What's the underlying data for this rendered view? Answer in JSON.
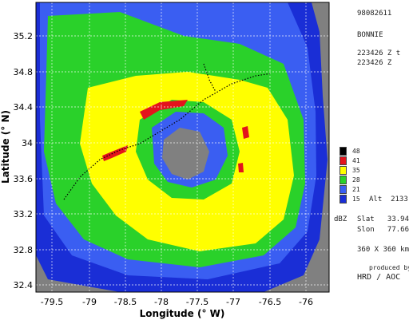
{
  "header": {
    "id": "98082611",
    "storm": "BONNIE",
    "time1": "223426 Z t",
    "time2": "223426 Z"
  },
  "legend": {
    "levels": [
      {
        "label": "48",
        "color": "#000000"
      },
      {
        "label": "41",
        "color": "#e3141c"
      },
      {
        "label": "35",
        "color": "#ffff00"
      },
      {
        "label": "28",
        "color": "#2ad12a"
      },
      {
        "label": "21",
        "color": "#3a5ef2"
      },
      {
        "label": "15",
        "color": "#1a2ed6"
      }
    ],
    "alt": "Alt  2133 m",
    "unit": "dBZ"
  },
  "center": {
    "slat": "Slat   33.94  N",
    "slon": "Slon   77.66  W"
  },
  "extent": "360 X 360 km",
  "credits": {
    "produced_by": "produced by",
    "org": "HRD / AOC"
  },
  "axes": {
    "xlabel": "Longitude (° W)",
    "ylabel": "Latitude (° N)",
    "xticks": [
      "-79.5",
      "-79",
      "-78.5",
      "-78",
      "-77.5",
      "-77",
      "-76.5",
      "-76"
    ],
    "yticks": [
      "35.2",
      "34.8",
      "34.4",
      "34",
      "33.6",
      "33.2",
      "32.8",
      "32.4"
    ]
  },
  "colors": {
    "land": "#808080",
    "background": "#ffffff"
  }
}
